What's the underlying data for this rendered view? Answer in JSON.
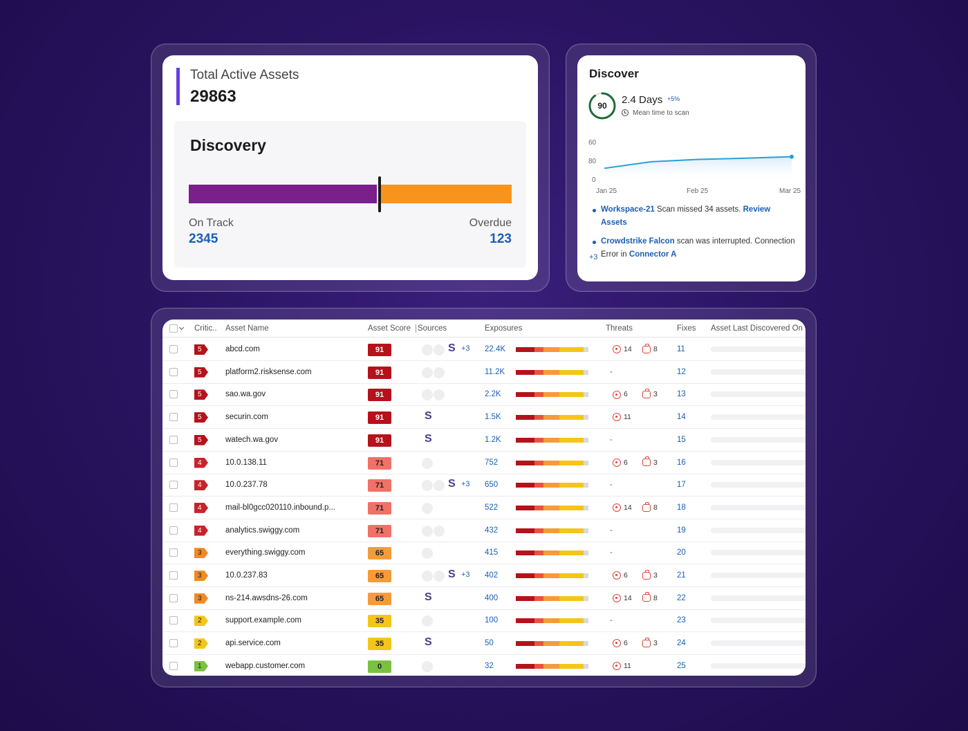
{
  "assets_card": {
    "total_label": "Total Active Assets",
    "total_value": "29863",
    "discovery_title": "Discovery",
    "on_track_label": "On Track",
    "on_track_value": "2345",
    "overdue_label": "Overdue",
    "overdue_value": "123",
    "on_track_fraction": 0.59,
    "colors": {
      "on_track": "#7a1f8c",
      "overdue": "#f7941d",
      "accent": "#6a3de0"
    }
  },
  "discover_card": {
    "title": "Discover",
    "score": "90",
    "score_fraction": 0.9,
    "mean_days": "2.4 Days",
    "delta": "+5%",
    "mean_label": "Mean time to scan",
    "chart_data": {
      "type": "line",
      "y_ticks": [
        "60",
        "80",
        "0"
      ],
      "x_ticks": [
        "Jan 25",
        "Feb 25",
        "Mar 25"
      ],
      "values": [
        0.35,
        0.52,
        0.58,
        0.61,
        0.65
      ]
    },
    "alerts": [
      {
        "link1": "Workspace-21",
        "text": " Scan missed 34 assets. ",
        "link2": "Review Assets",
        "text2": ""
      },
      {
        "link1": "Crowdstrike Falcon",
        "text": " scan was interrupted.    Connection Error in ",
        "link2": "Connector A",
        "text2": ""
      }
    ],
    "more": "+3"
  },
  "table": {
    "headers": {
      "criticality": "Critic..",
      "asset_name": "Asset Name",
      "asset_score": "Asset Score",
      "sources": "Sources",
      "exposures": "Exposures",
      "threats": "Threats",
      "fixes": "Fixes",
      "last_discovered": "Asset Last Discovered On"
    },
    "rows": [
      {
        "crit": "5",
        "name": "abcd.com",
        "score": "91",
        "sources": "dots2s",
        "plus": "+3",
        "exp": "22.4K",
        "t1": "14",
        "t2": "8",
        "fix": "11"
      },
      {
        "crit": "5",
        "name": "platform2.risksense.com",
        "score": "91",
        "sources": "dots2",
        "plus": "",
        "exp": "11.2K",
        "t1": "",
        "t2": "",
        "fix": "12"
      },
      {
        "crit": "5",
        "name": "sao.wa.gov",
        "score": "91",
        "sources": "dots2",
        "plus": "",
        "exp": "2.2K",
        "t1": "6",
        "t2": "3",
        "fix": "13"
      },
      {
        "crit": "5",
        "name": "securin.com",
        "score": "91",
        "sources": "s",
        "plus": "",
        "exp": "1.5K",
        "t1": "11",
        "t2": "",
        "fix": "14"
      },
      {
        "crit": "5",
        "name": "watech.wa.gov",
        "score": "91",
        "sources": "s",
        "plus": "",
        "exp": "1.2K",
        "t1": "",
        "t2": "",
        "fix": "15"
      },
      {
        "crit": "4",
        "name": "10.0.138.11",
        "score": "71",
        "sources": "dot1",
        "plus": "",
        "exp": "752",
        "t1": "6",
        "t2": "3",
        "fix": "16"
      },
      {
        "crit": "4",
        "name": "10.0.237.78",
        "score": "71",
        "sources": "dots2s",
        "plus": "+3",
        "exp": "650",
        "t1": "",
        "t2": "",
        "fix": "17"
      },
      {
        "crit": "4",
        "name": "mail-bl0gcc020110.inbound.p...",
        "score": "71",
        "sources": "dot1",
        "plus": "",
        "exp": "522",
        "t1": "14",
        "t2": "8",
        "fix": "18"
      },
      {
        "crit": "4",
        "name": "analytics.swiggy.com",
        "score": "71",
        "sources": "dots2",
        "plus": "",
        "exp": "432",
        "t1": "",
        "t2": "",
        "fix": "19"
      },
      {
        "crit": "3",
        "name": "everything.swiggy.com",
        "score": "65",
        "sources": "dot1",
        "plus": "",
        "exp": "415",
        "t1": "",
        "t2": "",
        "fix": "20"
      },
      {
        "crit": "3",
        "name": "10.0.237.83",
        "score": "65",
        "sources": "dots2s",
        "plus": "+3",
        "exp": "402",
        "t1": "6",
        "t2": "3",
        "fix": "21"
      },
      {
        "crit": "3",
        "name": "ns-214.awsdns-26.com",
        "score": "65",
        "sources": "s",
        "plus": "",
        "exp": "400",
        "t1": "14",
        "t2": "8",
        "fix": "22"
      },
      {
        "crit": "2",
        "name": "support.example.com",
        "score": "35",
        "sources": "dot1",
        "plus": "",
        "exp": "100",
        "t1": "",
        "t2": "",
        "fix": "23"
      },
      {
        "crit": "2",
        "name": "api.service.com",
        "score": "35",
        "sources": "s",
        "plus": "",
        "exp": "50",
        "t1": "6",
        "t2": "3",
        "fix": "24"
      },
      {
        "crit": "1",
        "name": "webapp.customer.com",
        "score": "0",
        "sources": "dot1",
        "plus": "",
        "exp": "32",
        "t1": "11",
        "t2": "",
        "fix": "25"
      }
    ],
    "dash": "-",
    "s_glyph": "S",
    "crit_colors": {
      "5": "#b5121b",
      "4": "#c8232c",
      "3": "#f08a24",
      "2": "#f5c518",
      "1": "#7ac142"
    },
    "score_colors": {
      "91": "#b5121b",
      "71": "#f07167",
      "65": "#f59b3a",
      "35": "#f5c518",
      "0": "#7ac142"
    },
    "exposure_segments": [
      {
        "color": "#b5121b",
        "fraction": 0.26
      },
      {
        "color": "#e8553a",
        "fraction": 0.12
      },
      {
        "color": "#f59b3a",
        "fraction": 0.22
      },
      {
        "color": "#f5c518",
        "fraction": 0.33
      },
      {
        "color": "#d9d9d9",
        "fraction": 0.07
      }
    ]
  }
}
